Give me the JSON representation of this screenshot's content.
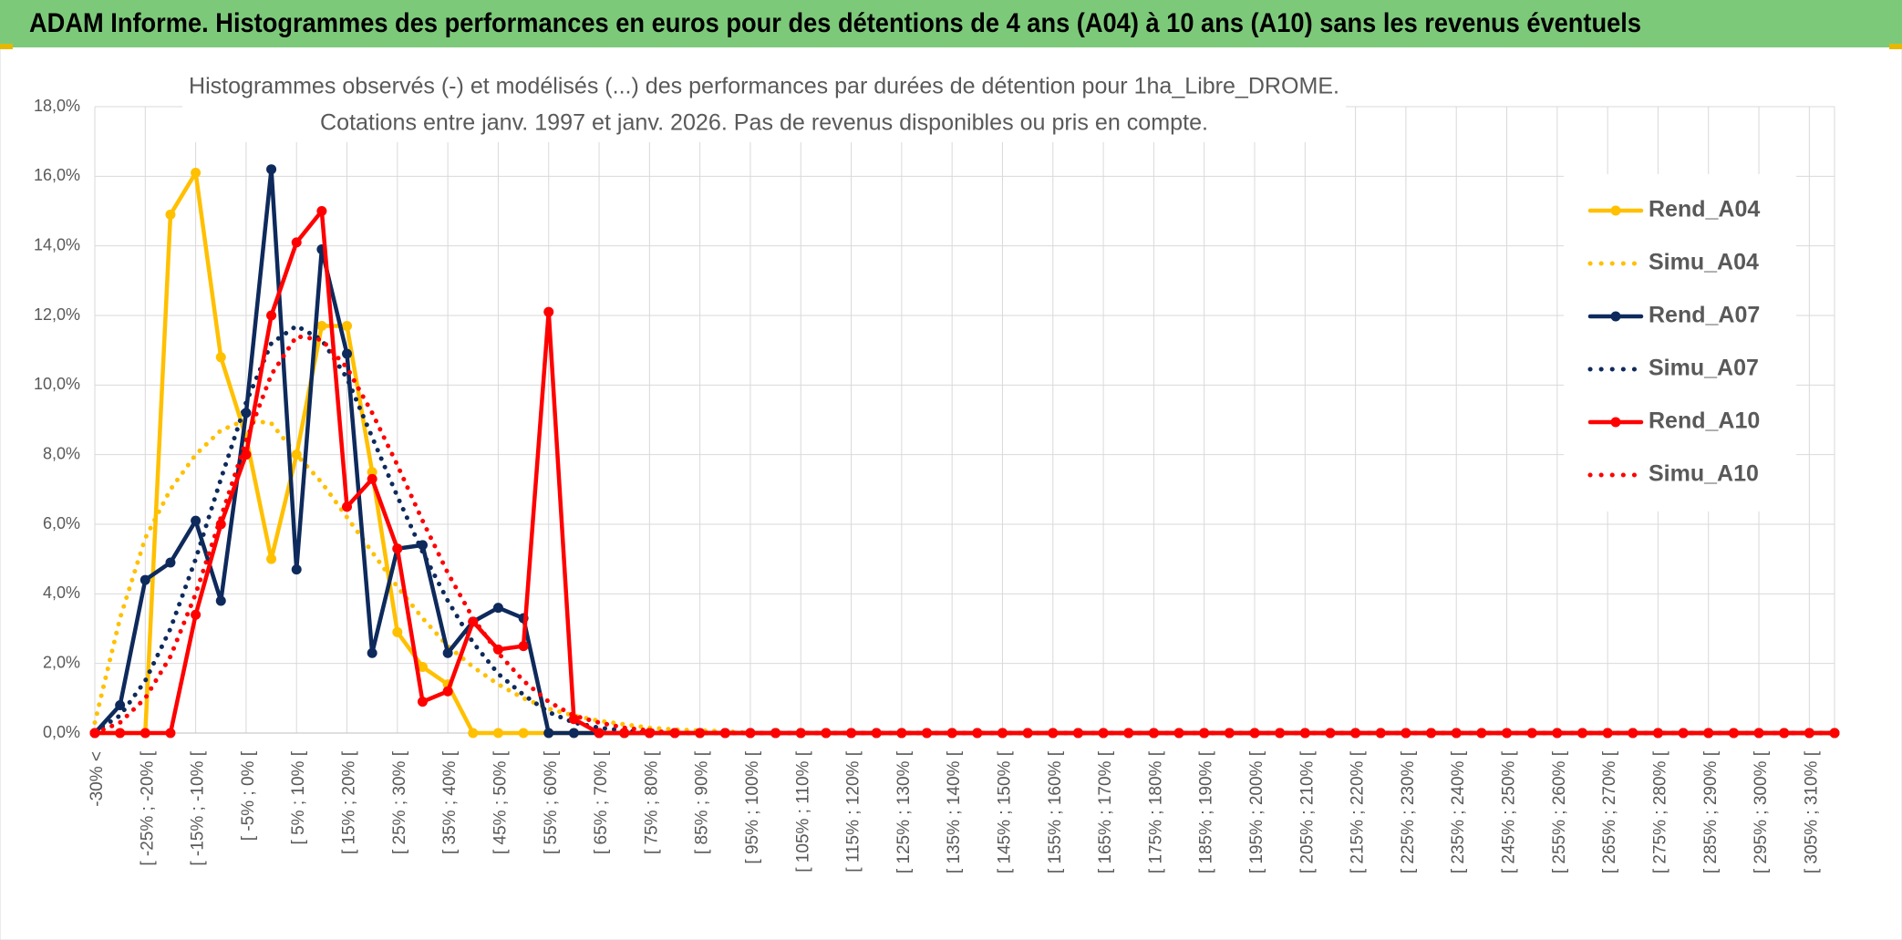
{
  "banner": "ADAM Informe. Histogrammes des performances en euros pour des détentions de 4 ans (A04) à 10 ans (A10) sans les revenus éventuels",
  "chart_data": {
    "type": "line",
    "title": "Histogrammes observés (-) et modélisés (...) des performances par durées de détention pour 1ha_Libre_DROME.",
    "subtitle": "Cotations entre janv. 1997 et janv. 2026. Pas de revenus disponibles ou pris en compte.",
    "categories": [
      "-30% <",
      null,
      "[ -25% ; -20% [",
      null,
      "[ -15% ; -10% [",
      null,
      "[ -5% ; 0% [",
      null,
      "[ 5% ; 10% [",
      null,
      "[ 15% ; 20% [",
      null,
      "[ 25% ; 30% [",
      null,
      "[ 35% ; 40% [",
      null,
      "[ 45% ; 50% [",
      null,
      "[ 55% ; 60% [",
      null,
      "[ 65% ; 70% [",
      null,
      "[ 75% ; 80% [",
      null,
      "[ 85% ; 90% [",
      null,
      "[ 95% ; 100% [",
      null,
      "[ 105% ; 110% [",
      null,
      "[ 115% ; 120% [",
      null,
      "[ 125% ; 130% [",
      null,
      "[ 135% ; 140% [",
      null,
      "[ 145% ; 150% [",
      null,
      "[ 155% ; 160% [",
      null,
      "[ 165% ; 170% [",
      null,
      "[ 175% ; 180% [",
      null,
      "[ 185% ; 190% [",
      null,
      "[ 195% ; 200% [",
      null,
      "[ 205% ; 210% [",
      null,
      "[ 215% ; 220% [",
      null,
      "[ 225% ; 230% [",
      null,
      "[ 235% ; 240% [",
      null,
      "[ 245% ; 250% [",
      null,
      "[ 255% ; 260% [",
      null,
      "[ 265% ; 270% [",
      null,
      "[ 275% ; 280% [",
      null,
      "[ 285% ; 290% [",
      null,
      "[ 295% ; 300% [",
      null,
      "[ 305% ; 310% [",
      null
    ],
    "series": [
      {
        "name": "Rend_A04",
        "color": "#ffc000",
        "style": "solid",
        "values": [
          0,
          0,
          0,
          14.9,
          16.1,
          10.8,
          8.5,
          5.0,
          8.0,
          11.7,
          11.7,
          7.5,
          2.9,
          1.9,
          1.4,
          0,
          0,
          0,
          0,
          0,
          0,
          0,
          0,
          0,
          0,
          0,
          0,
          0,
          0,
          0,
          0,
          0,
          0,
          0,
          0,
          0,
          0,
          0,
          0,
          0,
          0,
          0,
          0,
          0,
          0,
          0,
          0,
          0,
          0,
          0,
          0,
          0,
          0,
          0,
          0,
          0,
          0,
          0,
          0,
          0,
          0,
          0,
          0,
          0,
          0,
          0,
          0,
          0,
          0,
          0
        ]
      },
      {
        "name": "Simu_A04",
        "color": "#ffc000",
        "style": "dotted",
        "values": [
          0.3,
          3.3,
          5.6,
          7.0,
          8.0,
          8.7,
          9.0,
          8.9,
          8.0,
          7.2,
          6.2,
          5.2,
          4.2,
          3.3,
          2.5,
          1.9,
          1.4,
          1.0,
          0.7,
          0.5,
          0.35,
          0.25,
          0.15,
          0.1,
          0.07,
          0.05,
          0,
          0,
          0,
          0,
          0,
          0,
          0,
          0,
          0,
          0,
          0,
          0,
          0,
          0,
          0,
          0,
          0,
          0,
          0,
          0,
          0,
          0,
          0,
          0,
          0,
          0,
          0,
          0,
          0,
          0,
          0,
          0,
          0,
          0,
          0,
          0,
          0,
          0,
          0,
          0,
          0,
          0,
          0,
          0
        ]
      },
      {
        "name": "Rend_A07",
        "color": "#0e2a5c",
        "style": "solid",
        "values": [
          0,
          0.8,
          4.4,
          4.9,
          6.1,
          3.8,
          9.2,
          16.2,
          4.7,
          13.9,
          10.9,
          2.3,
          5.3,
          5.4,
          2.3,
          3.2,
          3.6,
          3.3,
          0,
          0,
          0,
          0,
          0,
          0,
          0,
          0,
          0,
          0,
          0,
          0,
          0,
          0,
          0,
          0,
          0,
          0,
          0,
          0,
          0,
          0,
          0,
          0,
          0,
          0,
          0,
          0,
          0,
          0,
          0,
          0,
          0,
          0,
          0,
          0,
          0,
          0,
          0,
          0,
          0,
          0,
          0,
          0,
          0,
          0,
          0,
          0,
          0,
          0,
          0,
          0
        ]
      },
      {
        "name": "Simu_A07",
        "color": "#0e2a5c",
        "style": "dotted",
        "values": [
          0.05,
          0.5,
          1.5,
          3.0,
          5.0,
          7.3,
          9.5,
          11.2,
          11.7,
          11.3,
          10.2,
          8.5,
          6.8,
          5.2,
          3.8,
          2.6,
          1.7,
          1.1,
          0.6,
          0.3,
          0.15,
          0.07,
          0,
          0,
          0,
          0,
          0,
          0,
          0,
          0,
          0,
          0,
          0,
          0,
          0,
          0,
          0,
          0,
          0,
          0,
          0,
          0,
          0,
          0,
          0,
          0,
          0,
          0,
          0,
          0,
          0,
          0,
          0,
          0,
          0,
          0,
          0,
          0,
          0,
          0,
          0,
          0,
          0,
          0,
          0,
          0,
          0,
          0,
          0,
          0
        ]
      },
      {
        "name": "Rend_A10",
        "color": "#ff0000",
        "style": "solid",
        "values": [
          0,
          0,
          0,
          0,
          3.4,
          6.0,
          8.0,
          12.0,
          14.1,
          15.0,
          6.5,
          7.3,
          5.3,
          0.9,
          1.2,
          3.2,
          2.4,
          2.5,
          12.1,
          0.4,
          0,
          0,
          0,
          0,
          0,
          0,
          0,
          0,
          0,
          0,
          0,
          0,
          0,
          0,
          0,
          0,
          0,
          0,
          0,
          0,
          0,
          0,
          0,
          0,
          0,
          0,
          0,
          0,
          0,
          0,
          0,
          0,
          0,
          0,
          0,
          0,
          0,
          0,
          0,
          0,
          0,
          0,
          0,
          0,
          0,
          0,
          0,
          0,
          0,
          0
        ]
      },
      {
        "name": "Simu_A10",
        "color": "#ff0000",
        "style": "dotted",
        "values": [
          0,
          0.3,
          1.0,
          2.2,
          4.0,
          6.2,
          8.4,
          10.3,
          11.4,
          11.3,
          10.5,
          9.2,
          7.7,
          6.1,
          4.6,
          3.3,
          2.3,
          1.5,
          0.9,
          0.5,
          0.3,
          0.15,
          0.07,
          0,
          0,
          0,
          0,
          0,
          0,
          0,
          0,
          0,
          0,
          0,
          0,
          0,
          0,
          0,
          0,
          0,
          0,
          0,
          0,
          0,
          0,
          0,
          0,
          0,
          0,
          0,
          0,
          0,
          0,
          0,
          0,
          0,
          0,
          0,
          0,
          0,
          0,
          0,
          0,
          0,
          0,
          0,
          0,
          0,
          0,
          0
        ]
      }
    ],
    "ylim": [
      0,
      18
    ],
    "yticks": [
      {
        "value": 0,
        "label": "0,0%"
      },
      {
        "value": 2,
        "label": "2,0%"
      },
      {
        "value": 4,
        "label": "4,0%"
      },
      {
        "value": 6,
        "label": "6,0%"
      },
      {
        "value": 8,
        "label": "8,0%"
      },
      {
        "value": 10,
        "label": "10,0%"
      },
      {
        "value": 12,
        "label": "12,0%"
      },
      {
        "value": 14,
        "label": "14,0%"
      },
      {
        "value": 16,
        "label": "16,0%"
      },
      {
        "value": 18,
        "label": "18,0%"
      }
    ],
    "grid": true,
    "legend": "right"
  }
}
